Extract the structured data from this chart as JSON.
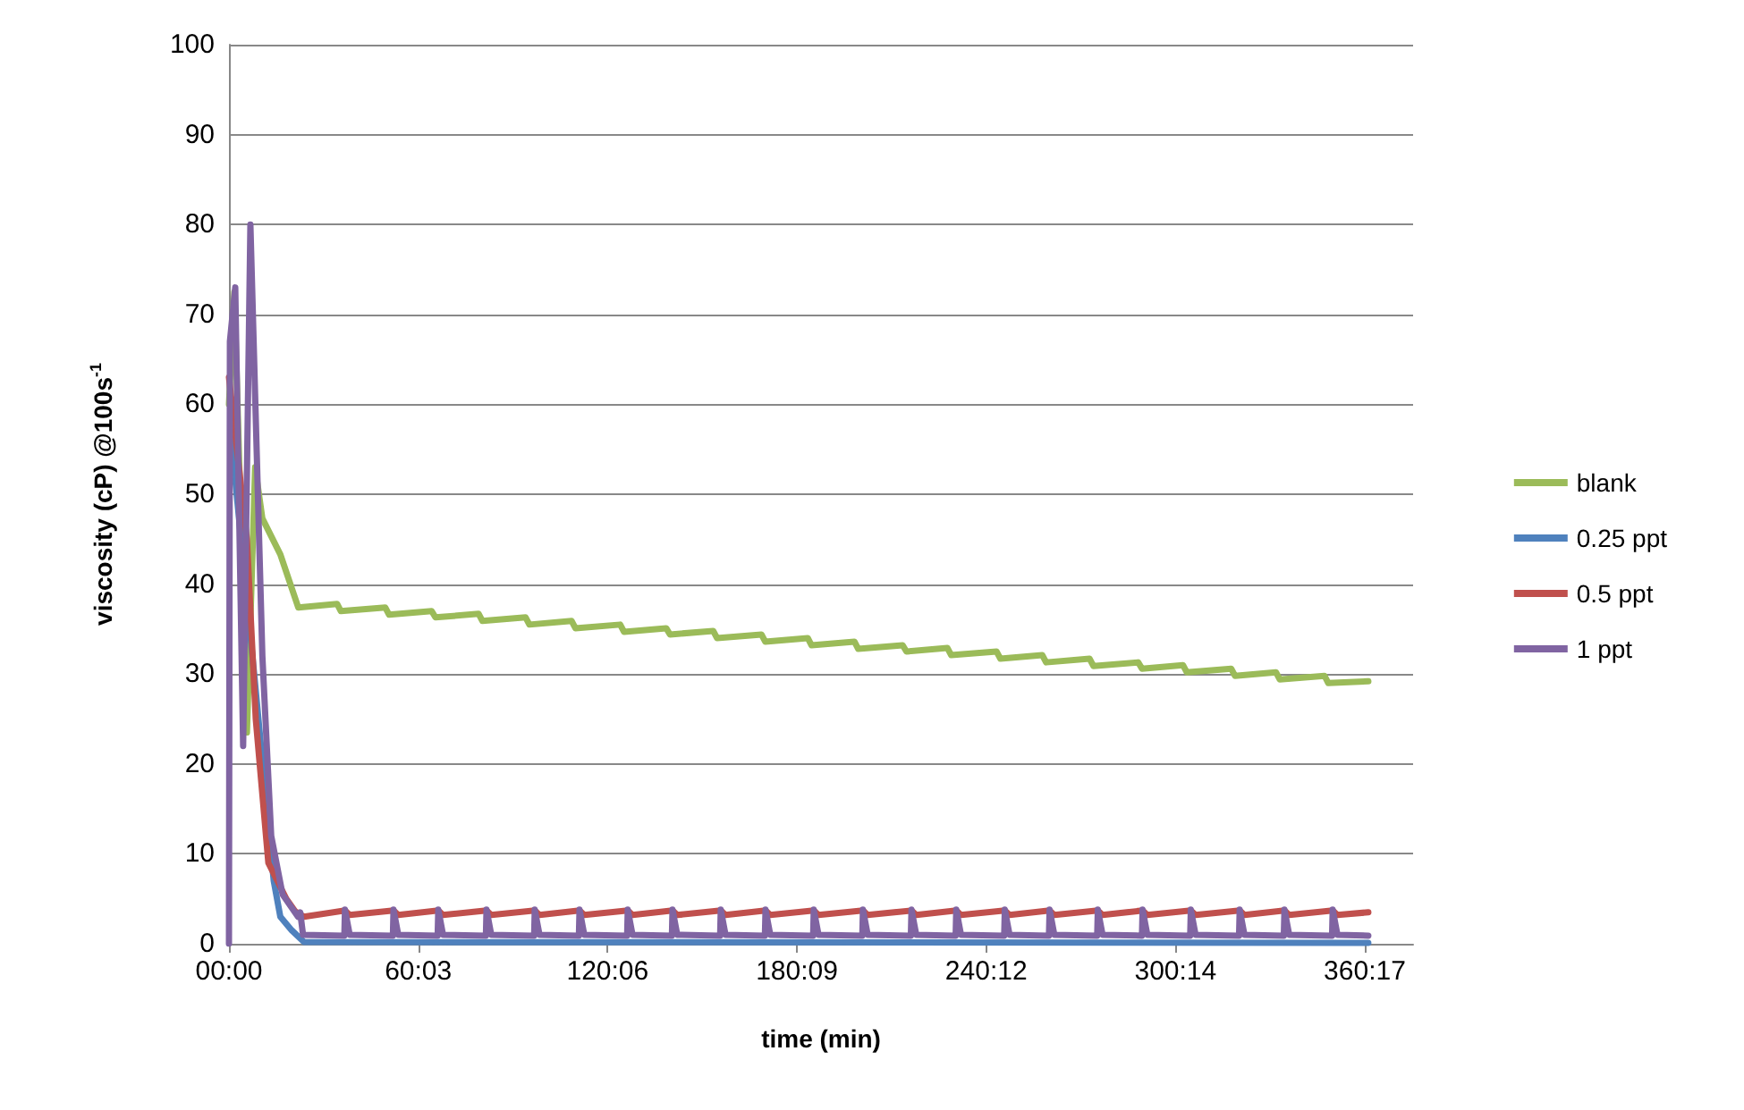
{
  "chart_data": {
    "type": "line",
    "xlabel": "time (min)",
    "ylabel": "viscosity (cP) @100s$^{-1}$",
    "xlim": [
      0,
      375.6
    ],
    "xticks": [
      {
        "value": 0,
        "label": "00:00"
      },
      {
        "value": 60.05,
        "label": "60:03"
      },
      {
        "value": 120.1,
        "label": "120:06"
      },
      {
        "value": 180.15,
        "label": "180:09"
      },
      {
        "value": 240.2,
        "label": "240:12"
      },
      {
        "value": 300.23,
        "label": "300:14"
      },
      {
        "value": 360.28,
        "label": "360:17"
      }
    ],
    "ylim": [
      0,
      100
    ],
    "yticks": [
      0,
      10,
      20,
      30,
      40,
      50,
      60,
      70,
      80,
      90,
      100
    ],
    "grid": "y",
    "legend": "right",
    "marker": "none",
    "line_style": "solid",
    "series": [
      {
        "name": "blank",
        "color": "#9bbb59",
        "x": [
          0,
          1.7,
          5.7,
          8.3,
          10.6,
          16.3,
          22,
          34.3,
          35.5,
          49.6,
          50.8,
          64.3,
          65.5,
          79.2,
          80.4,
          94.1,
          95.3,
          108.7,
          109.9,
          124.1,
          125.3,
          138.7,
          139.9,
          153.6,
          154.8,
          168.9,
          170.1,
          183.6,
          184.8,
          198.4,
          199.6,
          213.7,
          214.9,
          227.9,
          229.1,
          243.5,
          244.7,
          258.0,
          259.2,
          273.0,
          274.2,
          288.4,
          289.6,
          302.6,
          303.8,
          317.9,
          319.1,
          332.1,
          333.3,
          347.5,
          348.7,
          361.4
        ],
        "values": [
          60,
          72.5,
          23.5,
          53,
          47.3,
          43.3,
          37.4,
          37.8,
          37.0,
          37.4,
          36.6,
          37.0,
          36.3,
          36.7,
          35.9,
          36.3,
          35.5,
          35.9,
          35.1,
          35.5,
          34.7,
          35.1,
          34.4,
          34.8,
          34.0,
          34.4,
          33.6,
          34.0,
          33.2,
          33.6,
          32.8,
          33.2,
          32.5,
          32.9,
          32.1,
          32.5,
          31.7,
          32.1,
          31.3,
          31.7,
          30.9,
          31.3,
          30.6,
          31.0,
          30.2,
          30.6,
          29.8,
          30.2,
          29.4,
          29.8,
          29.0,
          29.2
        ]
      },
      {
        "name": "0.25 ppt",
        "color": "#4f81bd",
        "x": [
          0.5,
          8,
          14.2,
          16.3,
          19.9,
          23.8,
          361.4
        ],
        "values": [
          57,
          30,
          7,
          3,
          1.5,
          0.2,
          0.1
        ]
      },
      {
        "name": "0.5 ppt",
        "color": "#c0504d",
        "x": [
          0,
          5.7,
          8.5,
          12.5,
          18.2,
          21,
          23.8,
          36.8,
          38.3,
          52.2,
          53.7,
          66.4,
          67.9,
          81.7,
          83.2,
          97.0,
          98.5,
          111.2,
          112.7,
          126.5,
          128.0,
          140.7,
          142.2,
          156.0,
          157.5,
          170.2,
          171.7,
          185.5,
          187.0,
          201.1,
          202.6,
          216.5,
          218.0,
          230.7,
          232.2,
          246.1,
          247.6,
          260.3,
          261.8,
          275.6,
          277.1,
          289.8,
          291.3,
          305.1,
          306.6,
          320.6,
          322.1,
          334.8,
          336.3,
          350.1,
          351.6,
          361.4
        ],
        "values": [
          63,
          45,
          25,
          9,
          5,
          3.6,
          3.0,
          3.7,
          3.2,
          3.7,
          3.2,
          3.7,
          3.2,
          3.7,
          3.2,
          3.7,
          3.2,
          3.7,
          3.2,
          3.7,
          3.2,
          3.7,
          3.2,
          3.7,
          3.2,
          3.7,
          3.2,
          3.7,
          3.2,
          3.7,
          3.2,
          3.7,
          3.2,
          3.7,
          3.2,
          3.7,
          3.2,
          3.7,
          3.2,
          3.7,
          3.2,
          3.7,
          3.2,
          3.7,
          3.2,
          3.7,
          3.2,
          3.7,
          3.2,
          3.7,
          3.2,
          3.5
        ]
      },
      {
        "name": "1 ppt",
        "color": "#8064a2",
        "x": [
          0,
          0.3,
          2,
          4.5,
          6.8,
          10.6,
          13.4,
          17,
          21.9,
          22.6,
          23.5,
          36.6,
          36.8,
          38.3,
          52.0,
          52.2,
          53.7,
          66.2,
          66.4,
          67.9,
          81.5,
          81.7,
          83.2,
          96.8,
          97.0,
          98.5,
          111.0,
          111.2,
          112.7,
          126.3,
          126.5,
          128.0,
          140.5,
          140.7,
          142.2,
          155.8,
          156.0,
          157.5,
          170.0,
          170.2,
          171.7,
          185.3,
          185.5,
          187.0,
          200.9,
          201.1,
          202.6,
          216.3,
          216.5,
          218.0,
          230.5,
          230.7,
          232.2,
          245.9,
          246.1,
          247.6,
          260.1,
          260.3,
          261.8,
          275.4,
          275.6,
          277.1,
          289.6,
          289.8,
          291.3,
          304.9,
          305.1,
          306.6,
          320.4,
          320.6,
          322.1,
          334.6,
          334.8,
          336.3,
          349.9,
          350.1,
          351.6,
          361.4
        ],
        "values": [
          0,
          67,
          73,
          22,
          80,
          32,
          12,
          5.5,
          3,
          3.5,
          1.0,
          0.9,
          3.8,
          1.0,
          0.9,
          3.8,
          1.0,
          0.9,
          3.8,
          1.0,
          0.9,
          3.8,
          1.0,
          0.9,
          3.8,
          1.0,
          0.9,
          3.8,
          1.0,
          0.9,
          3.8,
          1.0,
          0.9,
          3.8,
          1.0,
          0.9,
          3.8,
          1.0,
          0.9,
          3.8,
          1.0,
          0.9,
          3.8,
          1.0,
          0.9,
          3.8,
          1.0,
          0.9,
          3.8,
          1.0,
          0.9,
          3.8,
          1.0,
          0.9,
          3.8,
          1.0,
          0.9,
          3.8,
          1.0,
          0.9,
          3.8,
          1.0,
          0.9,
          3.8,
          1.0,
          0.9,
          3.8,
          1.0,
          0.9,
          3.8,
          1.0,
          0.9,
          3.8,
          1.0,
          0.9,
          3.8,
          1.0,
          0.9
        ]
      }
    ]
  }
}
